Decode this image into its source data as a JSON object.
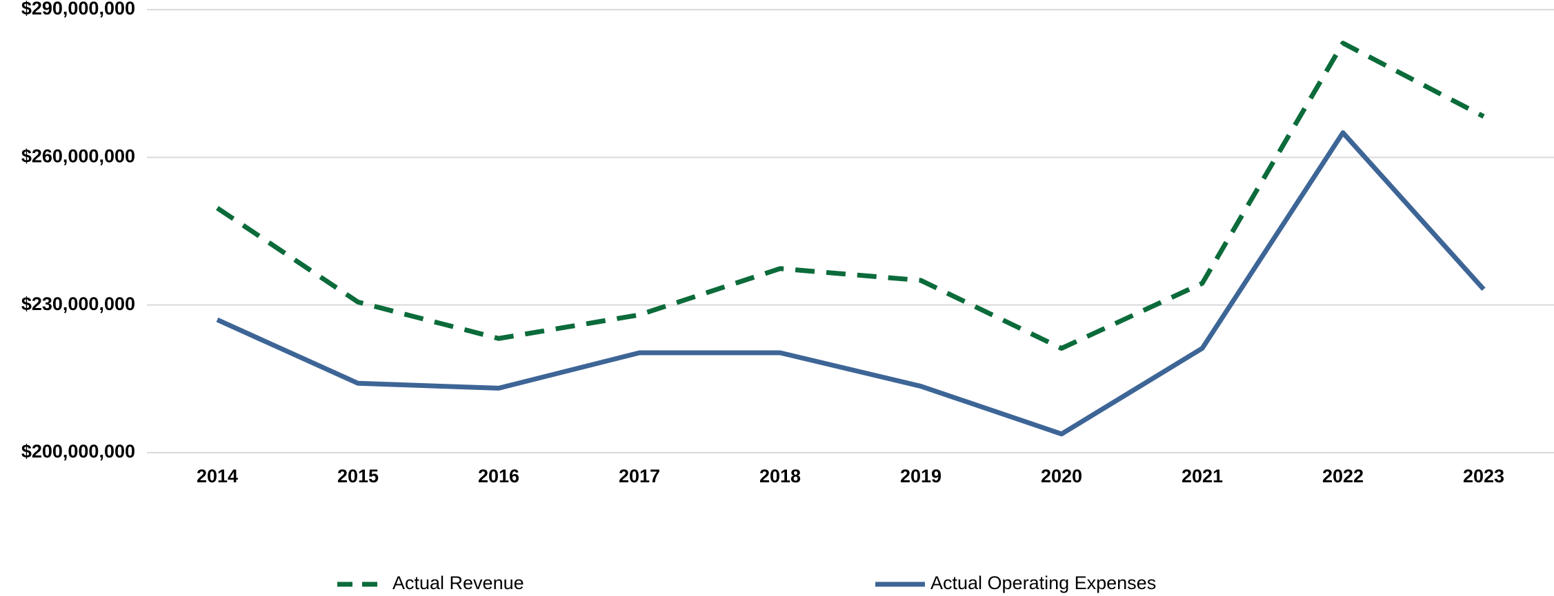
{
  "chart_data": {
    "type": "line",
    "categories": [
      "2014",
      "2015",
      "2016",
      "2017",
      "2018",
      "2019",
      "2020",
      "2021",
      "2022",
      "2023"
    ],
    "series": [
      {
        "name": "Actual Revenue",
        "color": "#0b6b3a",
        "dashed": true,
        "values": [
          249700000,
          230600000,
          223200000,
          228000000,
          237400000,
          235000000,
          221200000,
          234400000,
          283200000,
          268300000
        ]
      },
      {
        "name": "Actual Operating Expenses",
        "color": "#3d6596",
        "dashed": false,
        "values": [
          227000000,
          214100000,
          213100000,
          220300000,
          220300000,
          213500000,
          203800000,
          221200000,
          265000000,
          233200000
        ]
      }
    ],
    "ylim": [
      200000000,
      290000000
    ],
    "yticks": [
      {
        "value": 200000000,
        "label": "$200,000,000"
      },
      {
        "value": 230000000,
        "label": "$230,000,000"
      },
      {
        "value": 260000000,
        "label": "$260,000,000"
      },
      {
        "value": 290000000,
        "label": "$290,000,000"
      }
    ],
    "grid": true,
    "legend": "bottom"
  }
}
